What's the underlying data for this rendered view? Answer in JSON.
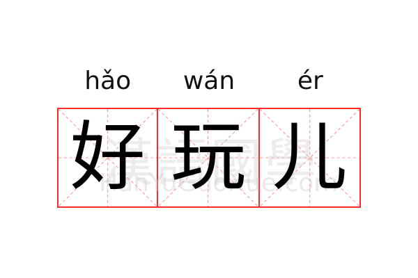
{
  "entries": [
    {
      "char": "好",
      "pinyin": "hǎo"
    },
    {
      "char": "玩",
      "pinyin": "wán"
    },
    {
      "char": "儿",
      "pinyin": "ér"
    }
  ],
  "watermark": {
    "chinese": "漢語國學",
    "latin": "HanYuGuoXue.com"
  },
  "colors": {
    "grid_border": "#ff2a2a",
    "grid_guides": "#ff9a9a"
  }
}
